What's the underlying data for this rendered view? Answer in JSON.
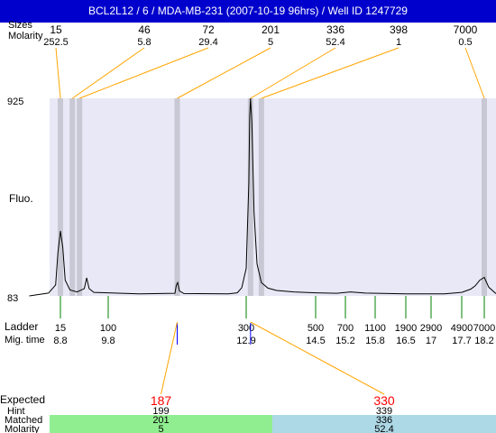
{
  "window": {
    "title": "BCL2L12 / 6 / MDA-MB-231 (2007-10-19 96hrs) / Well ID 1247729"
  },
  "header": {
    "sizes_label": "Sizes",
    "molarity_label": "Molarity"
  },
  "colors": {
    "title_bg": "#0000cc",
    "plot_bg": "#e8e8f6",
    "band": "#c8c8d4",
    "connector": "#ffa500",
    "ladder_tick": "#008000",
    "expected_red": "#ff0000",
    "matched_green": "#90ee90",
    "matched_blue": "#add8e6",
    "marker_blue": "#0000ff"
  },
  "chart_data": {
    "type": "line",
    "ylabel": "Fluo.",
    "ylim": [
      83,
      925
    ],
    "y_ticks": [
      "925",
      "83"
    ],
    "peaks": [
      {
        "size": "15",
        "molarity": "252.5",
        "time": 8.8
      },
      {
        "size": "46",
        "molarity": "5.8",
        "time": 9.05
      },
      {
        "size": "72",
        "molarity": "29.4",
        "time": 9.2
      },
      {
        "size": "201",
        "molarity": "5",
        "time": 11.35
      },
      {
        "size": "336",
        "molarity": "52.4",
        "time": 13.0
      },
      {
        "size": "398",
        "molarity": "1",
        "time": 13.25
      },
      {
        "size": "7000",
        "molarity": "0.5",
        "time": 18.2
      }
    ],
    "ladder_label": "Ladder",
    "migtime_label": "Mig. time",
    "ladder": [
      {
        "size": "15",
        "time": "8.8"
      },
      {
        "size": "100",
        "time": "9.8"
      },
      {
        "size": "300",
        "time": "12.9"
      },
      {
        "size": "500",
        "time": "14.5"
      },
      {
        "size": "700",
        "time": "15.2"
      },
      {
        "size": "1100",
        "time": "15.8"
      },
      {
        "size": "1900",
        "time": "16.5"
      },
      {
        "size": "2900",
        "time": "17"
      },
      {
        "size": "4900",
        "time": "17.7"
      },
      {
        "size": "7000",
        "time": "18.2"
      }
    ],
    "trace": [
      [
        8.15,
        83
      ],
      [
        8.55,
        95
      ],
      [
        8.7,
        130
      ],
      [
        8.75,
        270
      ],
      [
        8.8,
        360
      ],
      [
        8.85,
        290
      ],
      [
        8.9,
        150
      ],
      [
        9.0,
        108
      ],
      [
        9.15,
        100
      ],
      [
        9.3,
        114
      ],
      [
        9.35,
        160
      ],
      [
        9.4,
        114
      ],
      [
        9.5,
        98
      ],
      [
        10.5,
        92
      ],
      [
        11.3,
        94
      ],
      [
        11.33,
        128
      ],
      [
        11.36,
        140
      ],
      [
        11.4,
        104
      ],
      [
        11.5,
        93
      ],
      [
        12.5,
        92
      ],
      [
        12.7,
        96
      ],
      [
        12.8,
        118
      ],
      [
        12.9,
        200
      ],
      [
        12.96,
        560
      ],
      [
        12.98,
        850
      ],
      [
        13.0,
        925
      ],
      [
        13.03,
        820
      ],
      [
        13.08,
        440
      ],
      [
        13.15,
        220
      ],
      [
        13.25,
        140
      ],
      [
        13.4,
        116
      ],
      [
        13.6,
        106
      ],
      [
        14.0,
        100
      ],
      [
        14.5,
        96
      ],
      [
        15.0,
        94
      ],
      [
        15.3,
        100
      ],
      [
        15.6,
        95
      ],
      [
        16.5,
        92
      ],
      [
        17.3,
        92
      ],
      [
        17.7,
        98
      ],
      [
        17.9,
        112
      ],
      [
        18.0,
        126
      ],
      [
        18.1,
        150
      ],
      [
        18.2,
        162
      ],
      [
        18.3,
        120
      ],
      [
        18.45,
        94
      ],
      [
        18.6,
        92
      ]
    ],
    "expected_label": "Expected",
    "hint_label": "Hint",
    "matched_label": "Matched",
    "molarity_label": "Molarity",
    "expected": [
      {
        "expected": "187",
        "hint": "199",
        "matched": "201",
        "molarity": "5",
        "time": 11.35
      },
      {
        "expected": "330",
        "hint": "339",
        "matched": "336",
        "molarity": "52.4",
        "time": 13.0
      }
    ]
  }
}
